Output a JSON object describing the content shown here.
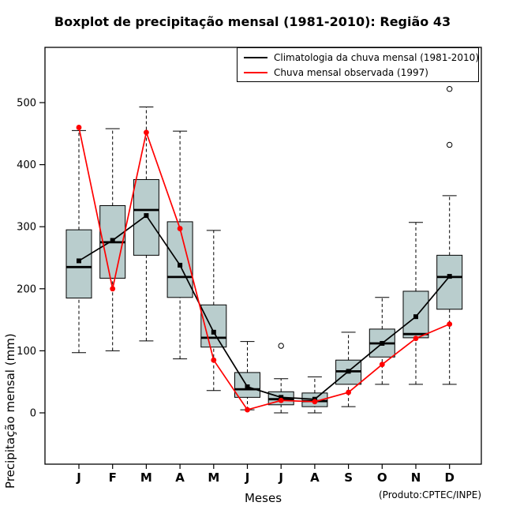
{
  "title": "Boxplot de precipitação mensal (1981-2010): Região 43",
  "xlabel": "Meses",
  "ylabel": "Precipitação mensal (mm)",
  "credit": "(Produto:CPTEC/INPE)",
  "legend": [
    {
      "label": "Climatologia da chuva mensal (1981-2010)",
      "color": "#000000"
    },
    {
      "label": "Chuva mensal observada (1997)",
      "color": "#ff0000"
    }
  ],
  "chart_data": {
    "type": "boxplot",
    "title": "Boxplot de precipitação mensal (1981-2010): Região 43",
    "xlabel": "Meses",
    "ylabel": "Precipitação mensal (mm)",
    "categories": [
      "J",
      "F",
      "M",
      "A",
      "M",
      "J",
      "J",
      "A",
      "S",
      "O",
      "N",
      "D"
    ],
    "yticks": [
      0,
      100,
      200,
      300,
      400,
      500
    ],
    "ylim": [
      -80,
      590
    ],
    "grid": false,
    "legend_position": "top-right",
    "box_fill": "#b9cdcd",
    "boxes": [
      {
        "low": 97,
        "q1": 185,
        "median": 235,
        "q3": 295,
        "high": 455,
        "outliers": []
      },
      {
        "low": 100,
        "q1": 217,
        "median": 275,
        "q3": 334,
        "high": 458,
        "outliers": []
      },
      {
        "low": 116,
        "q1": 254,
        "median": 327,
        "q3": 376,
        "high": 493,
        "outliers": []
      },
      {
        "low": 87,
        "q1": 186,
        "median": 219,
        "q3": 308,
        "high": 454,
        "outliers": []
      },
      {
        "low": 36,
        "q1": 106,
        "median": 121,
        "q3": 174,
        "high": 294,
        "outliers": []
      },
      {
        "low": 5,
        "q1": 25,
        "median": 38,
        "q3": 65,
        "high": 115,
        "outliers": []
      },
      {
        "low": 0,
        "q1": 13,
        "median": 22,
        "q3": 34,
        "high": 55,
        "outliers": [
          108
        ]
      },
      {
        "low": 0,
        "q1": 10,
        "median": 19,
        "q3": 32,
        "high": 58,
        "outliers": []
      },
      {
        "low": 10,
        "q1": 46,
        "median": 67,
        "q3": 85,
        "high": 130,
        "outliers": []
      },
      {
        "low": 46,
        "q1": 90,
        "median": 112,
        "q3": 135,
        "high": 186,
        "outliers": []
      },
      {
        "low": 46,
        "q1": 121,
        "median": 127,
        "q3": 196,
        "high": 307,
        "outliers": []
      },
      {
        "low": 46,
        "q1": 167,
        "median": 219,
        "q3": 254,
        "high": 350,
        "outliers": [
          432,
          522
        ]
      }
    ],
    "series": [
      {
        "name": "Climatologia da chuva mensal (1981-2010)",
        "color": "#000000",
        "marker": "square",
        "values": [
          245,
          278,
          318,
          238,
          130,
          42,
          25,
          22,
          67,
          112,
          155,
          220
        ]
      },
      {
        "name": "Chuva mensal observada (1997)",
        "color": "#ff0000",
        "marker": "circle",
        "values": [
          460,
          200,
          452,
          297,
          85,
          5,
          20,
          18,
          33,
          78,
          120,
          143
        ]
      }
    ]
  }
}
